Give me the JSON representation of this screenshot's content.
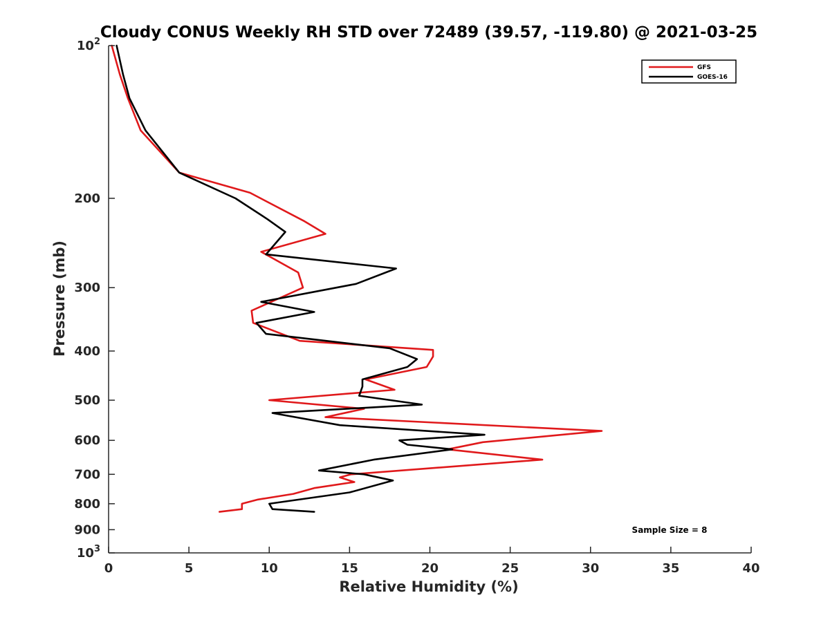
{
  "chart_data": {
    "type": "line",
    "title": "Cloudy CONUS Weekly RH STD over 72489 (39.57, -119.80) @ 2021-03-25",
    "xlabel": "Relative Humidity (%)",
    "ylabel": "Pressure (mb)",
    "xlim": [
      0,
      40
    ],
    "ylim": [
      1000,
      100
    ],
    "yscale": "log",
    "y_reversed": true,
    "x_ticks": [
      0,
      5,
      10,
      15,
      20,
      25,
      30,
      35,
      40
    ],
    "x_tick_labels": [
      "0",
      "5",
      "10",
      "15",
      "20",
      "25",
      "30",
      "35",
      "40"
    ],
    "y_ticks": [
      100,
      200,
      300,
      400,
      500,
      600,
      700,
      800,
      900,
      1000
    ],
    "y_tick_labels": [
      "10^2",
      "200",
      "300",
      "400",
      "500",
      "600",
      "700",
      "800",
      "900",
      "10^3"
    ],
    "grid": false,
    "legend_position": "top-right",
    "annotation": "Sample Size = 8",
    "series": [
      {
        "name": "GFS",
        "color": "#e0191b",
        "x": [
          0.2,
          0.7,
          1.2,
          2.0,
          4.4,
          8.8,
          12.2,
          13.5,
          9.5,
          11.8,
          12.1,
          8.9,
          9.0,
          11.9,
          20.2,
          20.2,
          19.8,
          16.0,
          17.8,
          10.0,
          15.9,
          13.5,
          30.7,
          23.3,
          21.1,
          27.0,
          15.1,
          14.4,
          15.3,
          12.8,
          11.5,
          9.3,
          8.3,
          8.3,
          6.9
        ],
        "y": [
          100,
          114,
          127,
          147,
          178,
          195,
          222,
          235,
          255,
          280,
          300,
          333,
          352,
          382,
          398,
          410,
          430,
          455,
          477,
          500,
          520,
          540,
          575,
          605,
          625,
          655,
          700,
          710,
          725,
          745,
          765,
          785,
          800,
          820,
          830
        ]
      },
      {
        "name": "GOES-16",
        "color": "#000000",
        "x": [
          0.5,
          0.9,
          1.3,
          2.3,
          4.4,
          7.9,
          9.9,
          11.0,
          9.8,
          17.9,
          15.4,
          9.5,
          12.8,
          9.2,
          9.8,
          17.5,
          19.2,
          18.6,
          15.8,
          15.8,
          15.6,
          19.5,
          10.2,
          14.4,
          23.4,
          18.1,
          18.6,
          21.4,
          16.5,
          13.1,
          15.9,
          17.7,
          15.0,
          10.0,
          10.2,
          12.8
        ],
        "y": [
          100,
          114,
          127,
          147,
          178,
          200,
          220,
          233,
          258,
          275,
          295,
          320,
          335,
          352,
          370,
          395,
          415,
          430,
          455,
          470,
          490,
          510,
          530,
          560,
          585,
          600,
          612,
          625,
          655,
          688,
          700,
          720,
          760,
          800,
          820,
          830
        ]
      }
    ]
  }
}
